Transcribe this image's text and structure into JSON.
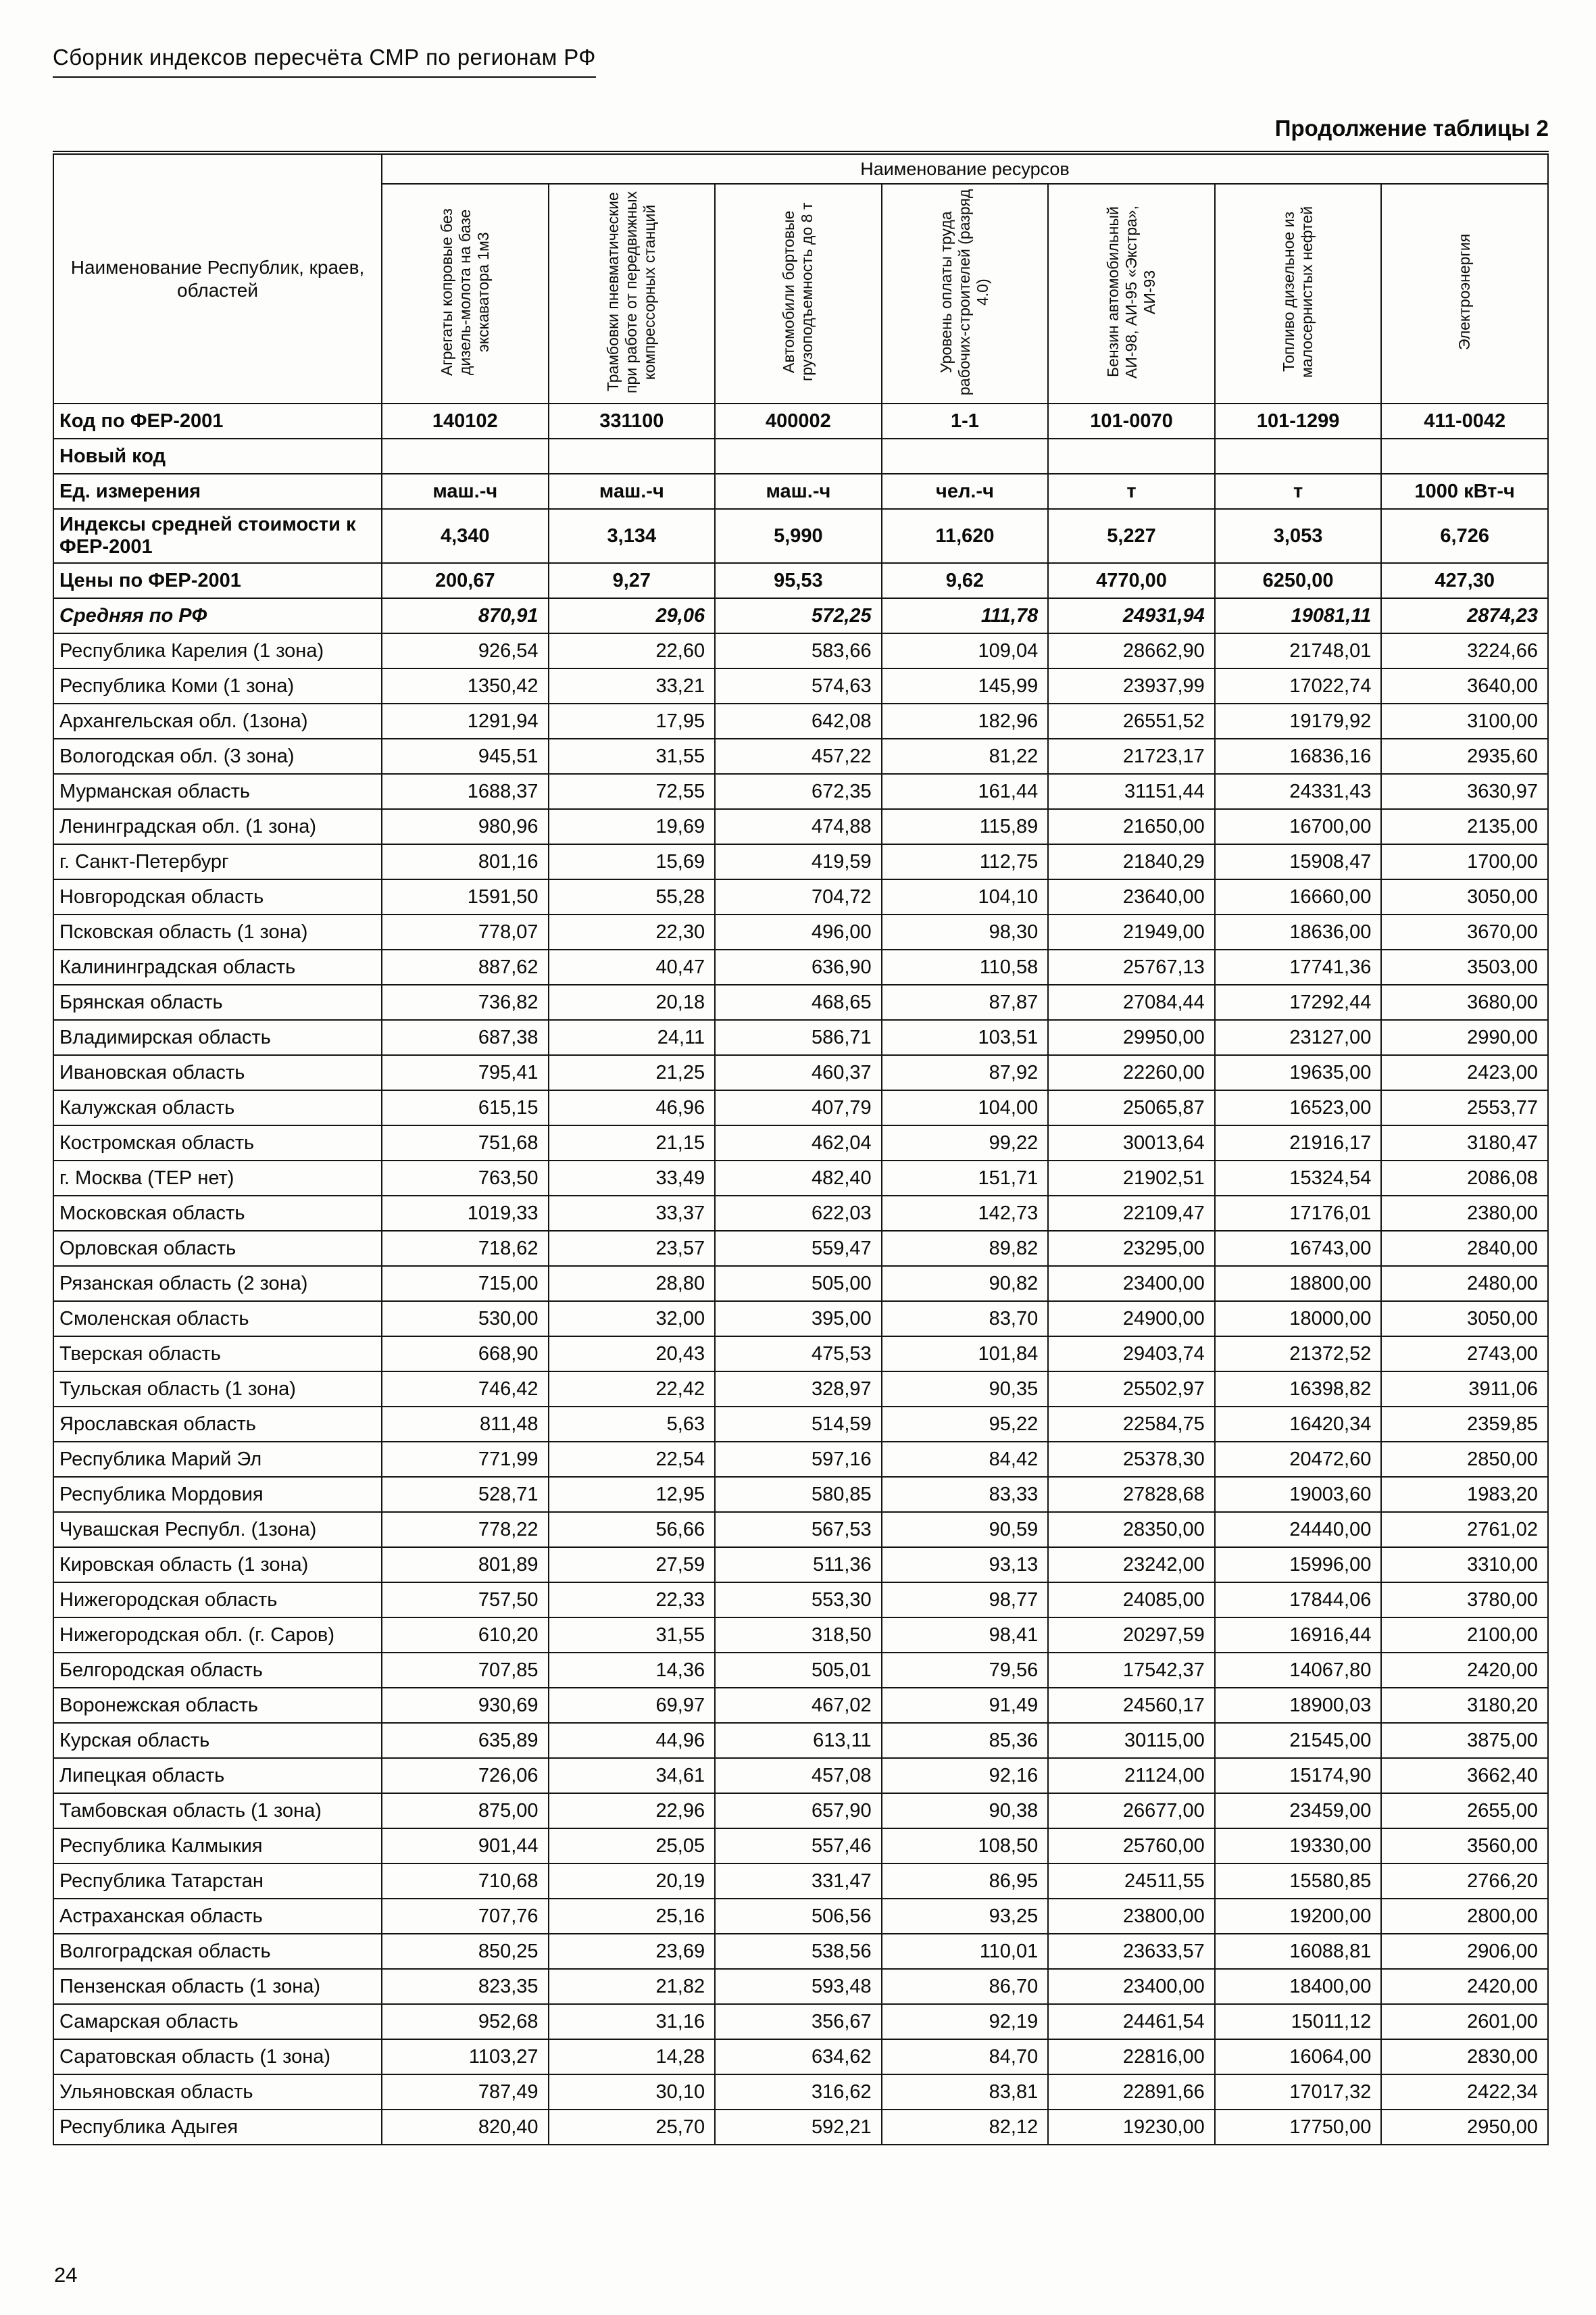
{
  "page": {
    "header_title": "Сборник индексов пересчёта СМР  по регионам РФ",
    "continuation_label": "Продолжение таблицы 2",
    "page_number": "24"
  },
  "table": {
    "resources_header": "Наименование ресурсов",
    "region_column_header": "Наименование Республик, краев, областей",
    "resource_columns": [
      "Агрегаты копровые без дизель-молота на базе экскаватора 1м3",
      "Трамбовки пневматические при работе от передвижных компрессорных станций",
      "Автомобили бортовые грузоподъемность до 8 т",
      "Уровень оплаты труда рабочих-строителей (разряд 4.0)",
      "Бензин автомобильный АИ-98, АИ-95 «Экстра», АИ-93",
      "Топливо дизельное из малосернистых нефтей",
      "Электроэнергия"
    ],
    "meta_rows": [
      {
        "label": "Код по ФЕР-2001",
        "style": "bold",
        "align": "center",
        "values": [
          "140102",
          "331100",
          "400002",
          "1-1",
          "101-0070",
          "101-1299",
          "411-0042"
        ]
      },
      {
        "label": "Новый код",
        "style": "bold",
        "align": "center",
        "values": [
          "",
          "",
          "",
          "",
          "",
          "",
          ""
        ]
      },
      {
        "label": "Ед. измерения",
        "style": "bold",
        "align": "center",
        "values": [
          "маш.-ч",
          "маш.-ч",
          "маш.-ч",
          "чел.-ч",
          "т",
          "т",
          "1000 кВт-ч"
        ]
      },
      {
        "label": "Индексы средней стоимости к ФЕР-2001",
        "style": "bold",
        "align": "center",
        "values": [
          "4,340",
          "3,134",
          "5,990",
          "11,620",
          "5,227",
          "3,053",
          "6,726"
        ]
      },
      {
        "label": "Цены по ФЕР-2001",
        "style": "bold",
        "align": "center",
        "values": [
          "200,67",
          "9,27",
          "95,53",
          "9,62",
          "4770,00",
          "6250,00",
          "427,30"
        ]
      },
      {
        "label": "Средняя по РФ",
        "style": "bold-italic",
        "align": "right",
        "values": [
          "870,91",
          "29,06",
          "572,25",
          "111,78",
          "24931,94",
          "19081,11",
          "2874,23"
        ]
      }
    ],
    "region_rows": [
      {
        "name": "Республика Карелия (1 зона)",
        "values": [
          "926,54",
          "22,60",
          "583,66",
          "109,04",
          "28662,90",
          "21748,01",
          "3224,66"
        ]
      },
      {
        "name": "Республика Коми (1 зона)",
        "values": [
          "1350,42",
          "33,21",
          "574,63",
          "145,99",
          "23937,99",
          "17022,74",
          "3640,00"
        ]
      },
      {
        "name": "Архангельская обл. (1зона)",
        "values": [
          "1291,94",
          "17,95",
          "642,08",
          "182,96",
          "26551,52",
          "19179,92",
          "3100,00"
        ]
      },
      {
        "name": "Вологодская обл. (3 зона)",
        "values": [
          "945,51",
          "31,55",
          "457,22",
          "81,22",
          "21723,17",
          "16836,16",
          "2935,60"
        ]
      },
      {
        "name": "Мурманская область",
        "values": [
          "1688,37",
          "72,55",
          "672,35",
          "161,44",
          "31151,44",
          "24331,43",
          "3630,97"
        ]
      },
      {
        "name": "Ленинградская обл. (1 зона)",
        "values": [
          "980,96",
          "19,69",
          "474,88",
          "115,89",
          "21650,00",
          "16700,00",
          "2135,00"
        ]
      },
      {
        "name": "г. Санкт-Петербург",
        "values": [
          "801,16",
          "15,69",
          "419,59",
          "112,75",
          "21840,29",
          "15908,47",
          "1700,00"
        ]
      },
      {
        "name": "Новгородская область",
        "values": [
          "1591,50",
          "55,28",
          "704,72",
          "104,10",
          "23640,00",
          "16660,00",
          "3050,00"
        ]
      },
      {
        "name": "Псковская область (1 зона)",
        "values": [
          "778,07",
          "22,30",
          "496,00",
          "98,30",
          "21949,00",
          "18636,00",
          "3670,00"
        ]
      },
      {
        "name": "Калининградская область",
        "values": [
          "887,62",
          "40,47",
          "636,90",
          "110,58",
          "25767,13",
          "17741,36",
          "3503,00"
        ]
      },
      {
        "name": "Брянская область",
        "values": [
          "736,82",
          "20,18",
          "468,65",
          "87,87",
          "27084,44",
          "17292,44",
          "3680,00"
        ]
      },
      {
        "name": "Владимирская область",
        "values": [
          "687,38",
          "24,11",
          "586,71",
          "103,51",
          "29950,00",
          "23127,00",
          "2990,00"
        ]
      },
      {
        "name": "Ивановская область",
        "values": [
          "795,41",
          "21,25",
          "460,37",
          "87,92",
          "22260,00",
          "19635,00",
          "2423,00"
        ]
      },
      {
        "name": "Калужская область",
        "values": [
          "615,15",
          "46,96",
          "407,79",
          "104,00",
          "25065,87",
          "16523,00",
          "2553,77"
        ]
      },
      {
        "name": "Костромская область",
        "values": [
          "751,68",
          "21,15",
          "462,04",
          "99,22",
          "30013,64",
          "21916,17",
          "3180,47"
        ]
      },
      {
        "name": "г. Москва (ТЕР нет)",
        "values": [
          "763,50",
          "33,49",
          "482,40",
          "151,71",
          "21902,51",
          "15324,54",
          "2086,08"
        ]
      },
      {
        "name": "Московская  область",
        "values": [
          "1019,33",
          "33,37",
          "622,03",
          "142,73",
          "22109,47",
          "17176,01",
          "2380,00"
        ]
      },
      {
        "name": "Орловская область",
        "values": [
          "718,62",
          "23,57",
          "559,47",
          "89,82",
          "23295,00",
          "16743,00",
          "2840,00"
        ]
      },
      {
        "name": "Рязанская область (2 зона)",
        "values": [
          "715,00",
          "28,80",
          "505,00",
          "90,82",
          "23400,00",
          "18800,00",
          "2480,00"
        ]
      },
      {
        "name": "Смоленская область",
        "values": [
          "530,00",
          "32,00",
          "395,00",
          "83,70",
          "24900,00",
          "18000,00",
          "3050,00"
        ]
      },
      {
        "name": "Тверская область",
        "values": [
          "668,90",
          "20,43",
          "475,53",
          "101,84",
          "29403,74",
          "21372,52",
          "2743,00"
        ]
      },
      {
        "name": "Тульская область (1 зона)",
        "values": [
          "746,42",
          "22,42",
          "328,97",
          "90,35",
          "25502,97",
          "16398,82",
          "3911,06"
        ]
      },
      {
        "name": "Ярославская область",
        "values": [
          "811,48",
          "5,63",
          "514,59",
          "95,22",
          "22584,75",
          "16420,34",
          "2359,85"
        ]
      },
      {
        "name": "Республика Марий Эл",
        "values": [
          "771,99",
          "22,54",
          "597,16",
          "84,42",
          "25378,30",
          "20472,60",
          "2850,00"
        ]
      },
      {
        "name": "Республика Мордовия",
        "values": [
          "528,71",
          "12,95",
          "580,85",
          "83,33",
          "27828,68",
          "19003,60",
          "1983,20"
        ]
      },
      {
        "name": "Чувашская Республ. (1зона)",
        "values": [
          "778,22",
          "56,66",
          "567,53",
          "90,59",
          "28350,00",
          "24440,00",
          "2761,02"
        ]
      },
      {
        "name": "Кировская область (1 зона)",
        "values": [
          "801,89",
          "27,59",
          "511,36",
          "93,13",
          "23242,00",
          "15996,00",
          "3310,00"
        ]
      },
      {
        "name": "Нижегородская область",
        "values": [
          "757,50",
          "22,33",
          "553,30",
          "98,77",
          "24085,00",
          "17844,06",
          "3780,00"
        ]
      },
      {
        "name": "Нижегородская обл. (г. Саров)",
        "values": [
          "610,20",
          "31,55",
          "318,50",
          "98,41",
          "20297,59",
          "16916,44",
          "2100,00"
        ]
      },
      {
        "name": "Белгородская область",
        "values": [
          "707,85",
          "14,36",
          "505,01",
          "79,56",
          "17542,37",
          "14067,80",
          "2420,00"
        ]
      },
      {
        "name": "Воронежская область",
        "values": [
          "930,69",
          "69,97",
          "467,02",
          "91,49",
          "24560,17",
          "18900,03",
          "3180,20"
        ]
      },
      {
        "name": "Курская область",
        "values": [
          "635,89",
          "44,96",
          "613,11",
          "85,36",
          "30115,00",
          "21545,00",
          "3875,00"
        ]
      },
      {
        "name": "Липецкая область",
        "values": [
          "726,06",
          "34,61",
          "457,08",
          "92,16",
          "21124,00",
          "15174,90",
          "3662,40"
        ]
      },
      {
        "name": "Тамбовская область (1 зона)",
        "values": [
          "875,00",
          "22,96",
          "657,90",
          "90,38",
          "26677,00",
          "23459,00",
          "2655,00"
        ]
      },
      {
        "name": "Республика Калмыкия",
        "values": [
          "901,44",
          "25,05",
          "557,46",
          "108,50",
          "25760,00",
          "19330,00",
          "3560,00"
        ]
      },
      {
        "name": "Республика Татарстан",
        "values": [
          "710,68",
          "20,19",
          "331,47",
          "86,95",
          "24511,55",
          "15580,85",
          "2766,20"
        ]
      },
      {
        "name": "Астраханская область",
        "values": [
          "707,76",
          "25,16",
          "506,56",
          "93,25",
          "23800,00",
          "19200,00",
          "2800,00"
        ]
      },
      {
        "name": "Волгоградская область",
        "values": [
          "850,25",
          "23,69",
          "538,56",
          "110,01",
          "23633,57",
          "16088,81",
          "2906,00"
        ]
      },
      {
        "name": "Пензенская область (1 зона)",
        "values": [
          "823,35",
          "21,82",
          "593,48",
          "86,70",
          "23400,00",
          "18400,00",
          "2420,00"
        ]
      },
      {
        "name": "Самарская область",
        "values": [
          "952,68",
          "31,16",
          "356,67",
          "92,19",
          "24461,54",
          "15011,12",
          "2601,00"
        ]
      },
      {
        "name": "Саратовская область (1 зона)",
        "values": [
          "1103,27",
          "14,28",
          "634,62",
          "84,70",
          "22816,00",
          "16064,00",
          "2830,00"
        ]
      },
      {
        "name": "Ульяновская область",
        "values": [
          "787,49",
          "30,10",
          "316,62",
          "83,81",
          "22891,66",
          "17017,32",
          "2422,34"
        ]
      },
      {
        "name": "Республика Адыгея",
        "values": [
          "820,40",
          "25,70",
          "592,21",
          "82,12",
          "19230,00",
          "17750,00",
          "2950,00"
        ]
      }
    ]
  }
}
